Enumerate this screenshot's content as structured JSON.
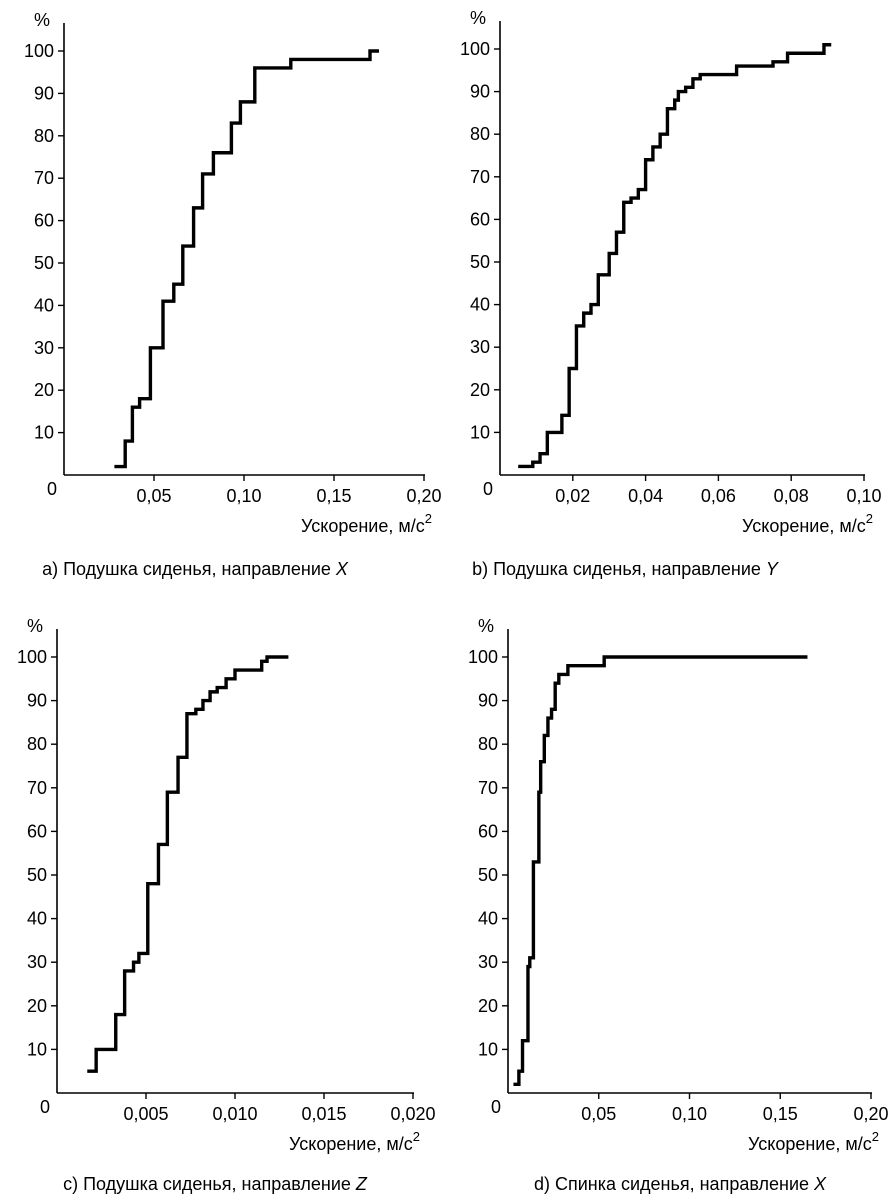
{
  "chart_data": [
    {
      "type": "line",
      "step": true,
      "caption_prefix": "а) Подушка сиденья, направление ",
      "caption_axis": "X",
      "xlabel": "Ускорение, м/с",
      "xlabel_sup": "2",
      "ylabel": "%",
      "xlim": [
        0,
        0.2
      ],
      "ylim": [
        0,
        100
      ],
      "x_ticks": [
        "0,05",
        "0,10",
        "0,15",
        "0,20"
      ],
      "y_ticks": [
        "10",
        "20",
        "30",
        "40",
        "50",
        "60",
        "70",
        "80",
        "90",
        "100"
      ],
      "origin_label": "0",
      "x": [
        0.028,
        0.034,
        0.034,
        0.038,
        0.038,
        0.042,
        0.042,
        0.048,
        0.048,
        0.055,
        0.055,
        0.061,
        0.061,
        0.066,
        0.066,
        0.072,
        0.072,
        0.077,
        0.077,
        0.083,
        0.083,
        0.093,
        0.093,
        0.098,
        0.098,
        0.106,
        0.106,
        0.126,
        0.126,
        0.17,
        0.17,
        0.175
      ],
      "y": [
        2,
        2,
        8,
        8,
        16,
        16,
        18,
        18,
        30,
        30,
        41,
        41,
        45,
        45,
        54,
        54,
        63,
        63,
        71,
        71,
        76,
        76,
        83,
        83,
        88,
        88,
        96,
        96,
        98,
        98,
        100,
        100
      ]
    },
    {
      "type": "line",
      "step": true,
      "caption_prefix": "b) Подушка сиденья, направление ",
      "caption_axis": "Y",
      "xlabel": "Ускорение, м/с",
      "xlabel_sup": "2",
      "ylabel": "%",
      "xlim": [
        0,
        0.1
      ],
      "ylim": [
        0,
        100
      ],
      "x_ticks": [
        "0,02",
        "0,04",
        "0,06",
        "0,08",
        "0,10"
      ],
      "y_ticks": [
        "10",
        "20",
        "30",
        "40",
        "50",
        "60",
        "70",
        "80",
        "90",
        "100"
      ],
      "origin_label": "0",
      "x": [
        0.005,
        0.009,
        0.009,
        0.011,
        0.011,
        0.013,
        0.013,
        0.017,
        0.017,
        0.019,
        0.019,
        0.021,
        0.021,
        0.023,
        0.023,
        0.025,
        0.025,
        0.027,
        0.027,
        0.03,
        0.03,
        0.032,
        0.032,
        0.034,
        0.034,
        0.036,
        0.036,
        0.038,
        0.038,
        0.04,
        0.04,
        0.042,
        0.042,
        0.044,
        0.044,
        0.046,
        0.046,
        0.048,
        0.048,
        0.049,
        0.049,
        0.051,
        0.051,
        0.053,
        0.053,
        0.055,
        0.055,
        0.065,
        0.065,
        0.075,
        0.075,
        0.079,
        0.079,
        0.089,
        0.089,
        0.091
      ],
      "y": [
        2,
        2,
        3,
        3,
        5,
        5,
        10,
        10,
        14,
        14,
        25,
        25,
        35,
        35,
        38,
        38,
        40,
        40,
        47,
        47,
        52,
        52,
        57,
        57,
        64,
        64,
        65,
        65,
        67,
        67,
        74,
        74,
        77,
        77,
        80,
        80,
        86,
        86,
        88,
        88,
        90,
        90,
        91,
        91,
        93,
        93,
        94,
        94,
        96,
        96,
        97,
        97,
        99,
        99,
        101,
        101
      ]
    },
    {
      "type": "line",
      "step": true,
      "caption_prefix": "c) Подушка сиденья, направление ",
      "caption_axis": "Z",
      "xlabel": "Ускорение, м/с",
      "xlabel_sup": "2",
      "ylabel": "%",
      "xlim": [
        0,
        0.02
      ],
      "ylim": [
        0,
        100
      ],
      "x_ticks": [
        "0,005",
        "0,010",
        "0,015",
        "0,020"
      ],
      "y_ticks": [
        "10",
        "20",
        "30",
        "40",
        "50",
        "60",
        "70",
        "80",
        "90",
        "100"
      ],
      "origin_label": "0",
      "x": [
        0.0017,
        0.0022,
        0.0022,
        0.0033,
        0.0033,
        0.0038,
        0.0038,
        0.0043,
        0.0043,
        0.0046,
        0.0046,
        0.0051,
        0.0051,
        0.0057,
        0.0057,
        0.0062,
        0.0062,
        0.0068,
        0.0068,
        0.0073,
        0.0073,
        0.0078,
        0.0078,
        0.0082,
        0.0082,
        0.0086,
        0.0086,
        0.009,
        0.009,
        0.0095,
        0.0095,
        0.01,
        0.01,
        0.0115,
        0.0115,
        0.0118,
        0.0118,
        0.0123,
        0.0123,
        0.0127,
        0.0127,
        0.013
      ],
      "y": [
        5,
        5,
        10,
        10,
        18,
        18,
        28,
        28,
        30,
        30,
        32,
        32,
        48,
        48,
        57,
        57,
        69,
        69,
        77,
        77,
        87,
        87,
        88,
        88,
        90,
        90,
        92,
        92,
        93,
        93,
        95,
        95,
        97,
        97,
        99,
        99,
        100,
        100,
        100,
        100,
        100,
        100
      ]
    },
    {
      "type": "line",
      "step": true,
      "caption_prefix": "d) Спинка сиденья, направление ",
      "caption_axis": "X",
      "xlabel": "Ускорение, м/с",
      "xlabel_sup": "2",
      "ylabel": "%",
      "xlim": [
        0,
        0.2
      ],
      "ylim": [
        0,
        100
      ],
      "x_ticks": [
        "0,05",
        "0,10",
        "0,15",
        "0,20"
      ],
      "y_ticks": [
        "10",
        "20",
        "30",
        "40",
        "50",
        "60",
        "70",
        "80",
        "90",
        "100"
      ],
      "origin_label": "0",
      "x": [
        0.003,
        0.006,
        0.006,
        0.008,
        0.008,
        0.011,
        0.011,
        0.012,
        0.012,
        0.014,
        0.014,
        0.017,
        0.017,
        0.018,
        0.018,
        0.02,
        0.02,
        0.022,
        0.022,
        0.024,
        0.024,
        0.026,
        0.026,
        0.028,
        0.028,
        0.03,
        0.03,
        0.033,
        0.033,
        0.053,
        0.053,
        0.162,
        0.162,
        0.165
      ],
      "y": [
        2,
        2,
        5,
        5,
        12,
        12,
        29,
        29,
        31,
        31,
        53,
        53,
        69,
        69,
        76,
        76,
        82,
        82,
        86,
        86,
        88,
        88,
        94,
        94,
        96,
        96,
        96,
        96,
        98,
        98,
        100,
        100,
        100,
        100
      ]
    }
  ]
}
